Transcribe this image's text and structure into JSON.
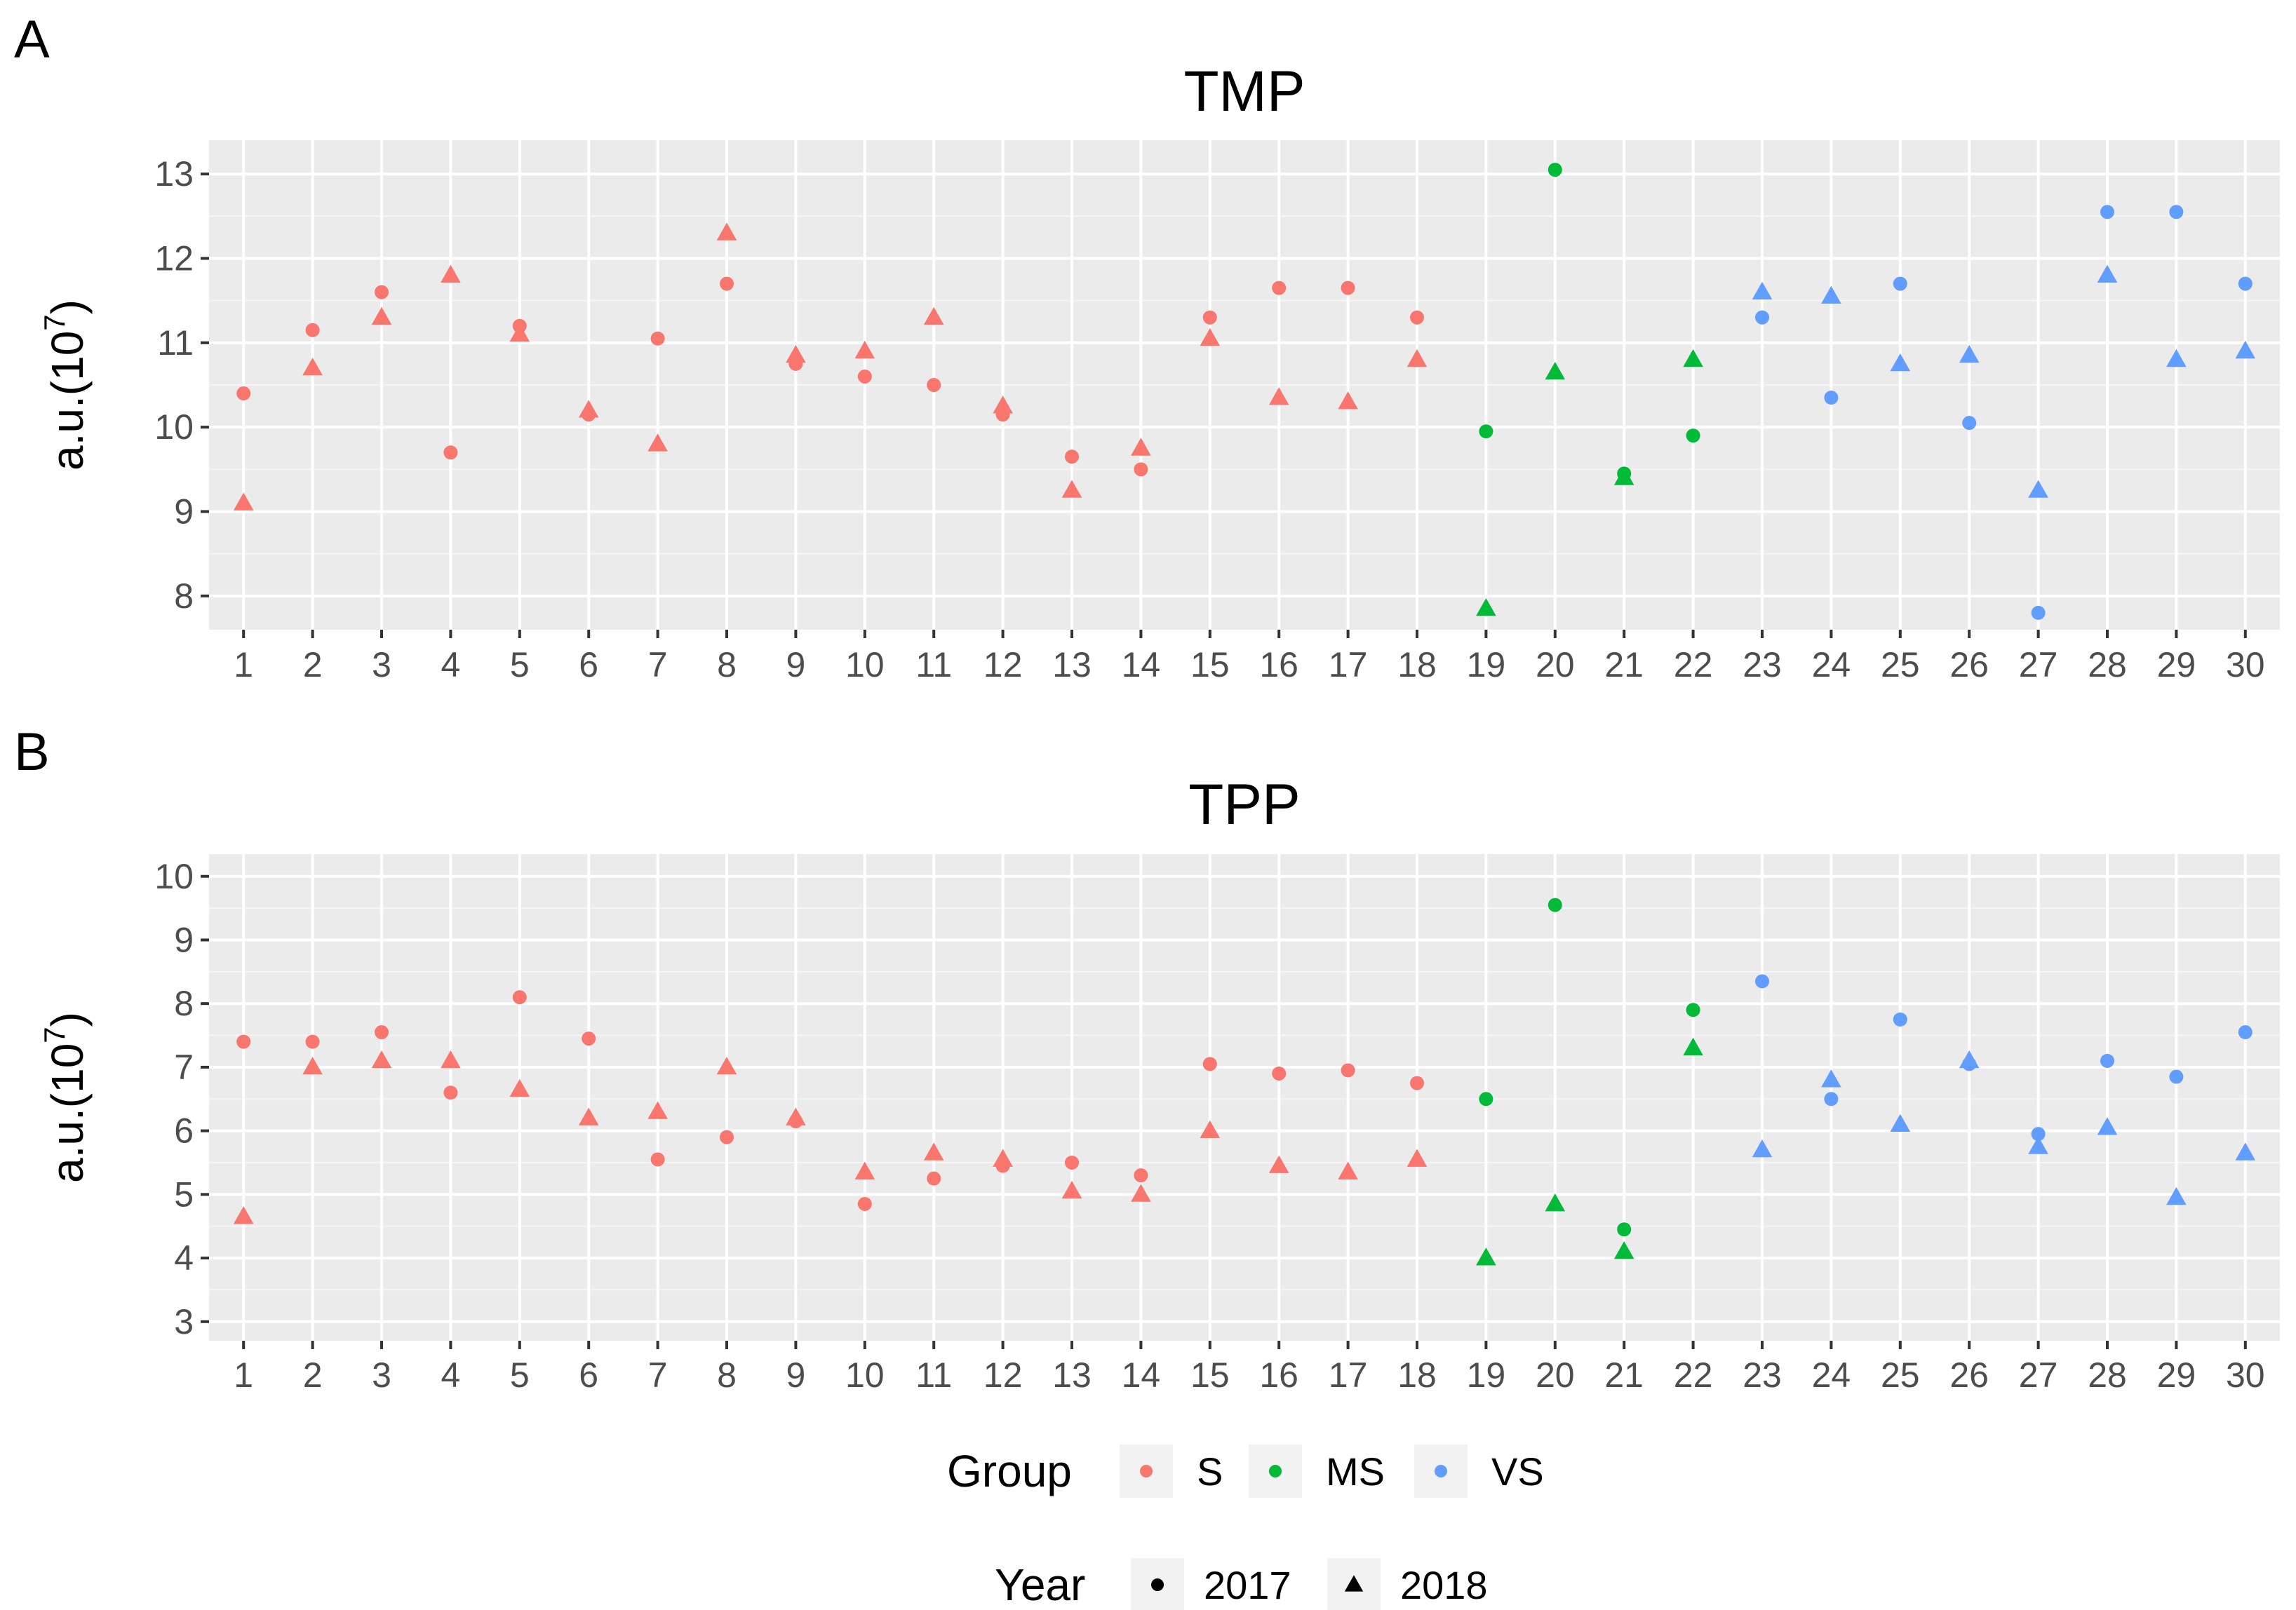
{
  "chart_data": [
    {
      "type": "scatter",
      "panel_label": "A",
      "title": "TMP",
      "ylabel_main": "a.u.(10",
      "ylabel_exp": "7",
      "ylabel_close": ")",
      "xlabel": "",
      "ylim": [
        7.6,
        13.4
      ],
      "yticks": [
        8,
        9,
        10,
        11,
        12,
        13
      ],
      "categories": [
        "1",
        "2",
        "3",
        "4",
        "5",
        "6",
        "7",
        "8",
        "9",
        "10",
        "11",
        "12",
        "13",
        "14",
        "15",
        "16",
        "17",
        "18",
        "19",
        "20",
        "21",
        "22",
        "23",
        "24",
        "25",
        "26",
        "27",
        "28",
        "29",
        "30"
      ],
      "group_of_sample": [
        "S",
        "S",
        "S",
        "S",
        "S",
        "S",
        "S",
        "S",
        "S",
        "S",
        "S",
        "S",
        "S",
        "S",
        "S",
        "S",
        "S",
        "S",
        "MS",
        "MS",
        "MS",
        "MS",
        "VS",
        "VS",
        "VS",
        "VS",
        "VS",
        "VS",
        "VS",
        "VS"
      ],
      "series": [
        {
          "name": "2017",
          "values": [
            10.4,
            11.15,
            11.6,
            9.7,
            11.2,
            10.15,
            11.05,
            11.7,
            10.75,
            10.6,
            10.5,
            10.15,
            9.65,
            9.5,
            11.3,
            11.65,
            11.65,
            11.3,
            9.95,
            13.05,
            9.45,
            9.9,
            11.3,
            10.35,
            11.7,
            10.05,
            7.8,
            12.55,
            12.55,
            11.7
          ]
        },
        {
          "name": "2018",
          "values": [
            9.1,
            10.7,
            11.3,
            11.8,
            11.1,
            10.2,
            9.8,
            12.3,
            10.85,
            10.9,
            11.3,
            10.25,
            9.25,
            9.75,
            11.05,
            10.35,
            10.3,
            10.8,
            7.85,
            10.65,
            9.4,
            10.8,
            11.6,
            11.55,
            10.75,
            10.85,
            9.25,
            11.8,
            10.8,
            10.9
          ]
        }
      ]
    },
    {
      "type": "scatter",
      "panel_label": "B",
      "title": "TPP",
      "ylabel_main": "a.u.(10",
      "ylabel_exp": "7",
      "ylabel_close": ")",
      "xlabel": "",
      "ylim": [
        2.7,
        10.35
      ],
      "yticks": [
        3,
        4,
        5,
        6,
        7,
        8,
        9,
        10
      ],
      "categories": [
        "1",
        "2",
        "3",
        "4",
        "5",
        "6",
        "7",
        "8",
        "9",
        "10",
        "11",
        "12",
        "13",
        "14",
        "15",
        "16",
        "17",
        "18",
        "19",
        "20",
        "21",
        "22",
        "23",
        "24",
        "25",
        "26",
        "27",
        "28",
        "29",
        "30"
      ],
      "group_of_sample": [
        "S",
        "S",
        "S",
        "S",
        "S",
        "S",
        "S",
        "S",
        "S",
        "S",
        "S",
        "S",
        "S",
        "S",
        "S",
        "S",
        "S",
        "S",
        "MS",
        "MS",
        "MS",
        "MS",
        "VS",
        "VS",
        "VS",
        "VS",
        "VS",
        "VS",
        "VS",
        "VS"
      ],
      "series": [
        {
          "name": "2017",
          "values": [
            7.4,
            7.4,
            7.55,
            6.6,
            8.1,
            7.45,
            5.55,
            5.9,
            6.15,
            4.85,
            5.25,
            5.45,
            5.5,
            5.3,
            7.05,
            6.9,
            6.95,
            6.75,
            6.5,
            9.55,
            4.45,
            7.9,
            8.35,
            6.5,
            7.75,
            7.05,
            5.95,
            7.1,
            6.85,
            7.55
          ]
        },
        {
          "name": "2018",
          "values": [
            4.65,
            7.0,
            7.1,
            7.1,
            6.65,
            6.2,
            6.3,
            7.0,
            6.2,
            5.35,
            5.65,
            5.55,
            5.05,
            5.0,
            6.0,
            5.45,
            5.35,
            5.55,
            4.0,
            4.85,
            4.1,
            7.3,
            5.7,
            6.8,
            6.1,
            7.1,
            5.75,
            6.05,
            4.95,
            5.65
          ]
        }
      ]
    }
  ],
  "legend": {
    "group_title": "Group",
    "groups": [
      {
        "label": "S",
        "color": "#F8766D"
      },
      {
        "label": "MS",
        "color": "#00BA38"
      },
      {
        "label": "VS",
        "color": "#619CFF"
      }
    ],
    "year_title": "Year",
    "years": [
      {
        "label": "2017",
        "shape": "circle"
      },
      {
        "label": "2018",
        "shape": "triangle"
      }
    ]
  }
}
